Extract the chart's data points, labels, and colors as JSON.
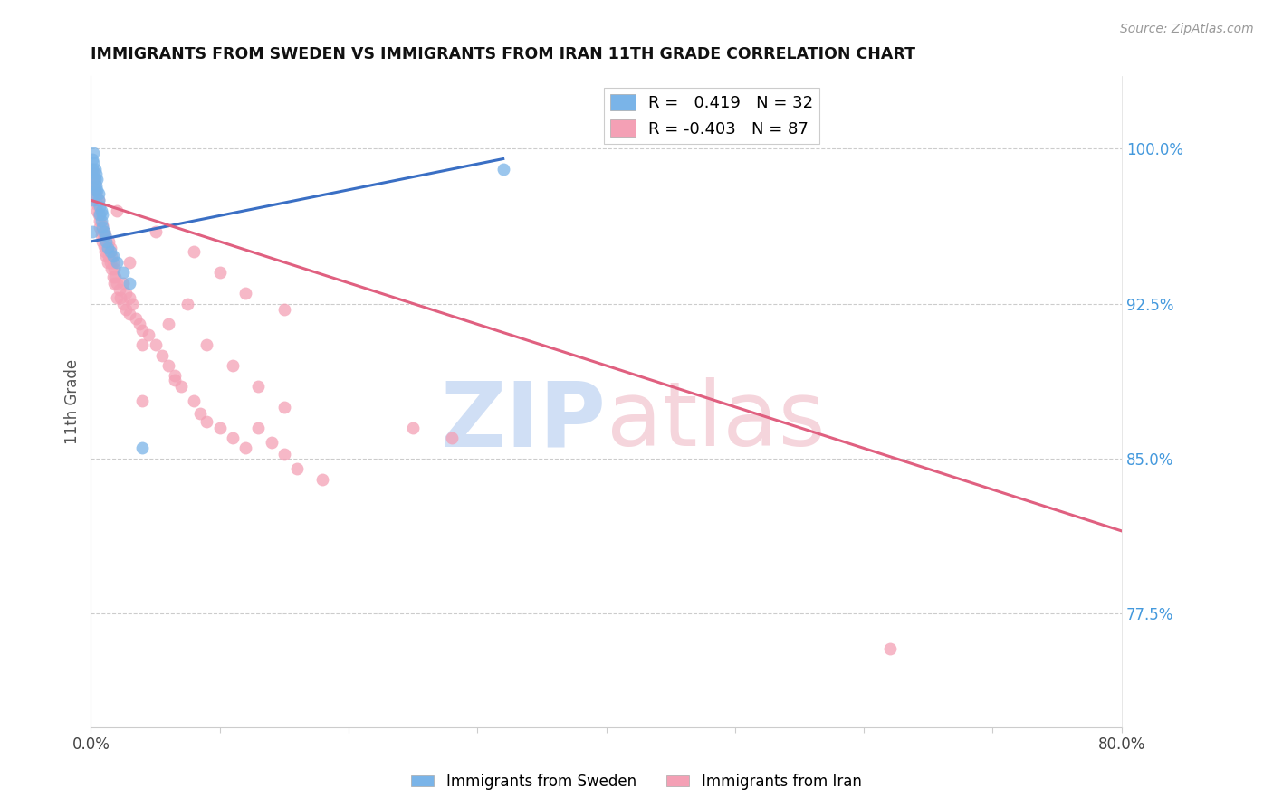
{
  "title": "IMMIGRANTS FROM SWEDEN VS IMMIGRANTS FROM IRAN 11TH GRADE CORRELATION CHART",
  "source": "Source: ZipAtlas.com",
  "ylabel": "11th Grade",
  "right_yticks": [
    0.775,
    0.85,
    0.925,
    1.0
  ],
  "right_ytick_labels": [
    "77.5%",
    "85.0%",
    "92.5%",
    "100.0%"
  ],
  "sweden_color": "#7ab4e8",
  "iran_color": "#f4a0b5",
  "sweden_line_color": "#3a6fc4",
  "iran_line_color": "#e06080",
  "watermark_zip_color": "#d0dff5",
  "watermark_atlas_color": "#f5d5dc",
  "xlim": [
    0.0,
    0.8
  ],
  "ylim": [
    0.72,
    1.035
  ],
  "xticks": [
    0.0,
    0.1,
    0.2,
    0.3,
    0.4,
    0.5,
    0.6,
    0.7,
    0.8
  ],
  "xtick_labels_show": {
    "0.0": "0.0%",
    "0.8": "80.0%"
  },
  "grid_color": "#cccccc",
  "right_axis_color": "#4499dd",
  "dot_size": 100,
  "sweden_line_x": [
    0.0,
    0.32
  ],
  "sweden_line_y": [
    0.955,
    0.995
  ],
  "iran_line_x": [
    0.0,
    0.8
  ],
  "iran_line_y": [
    0.975,
    0.815
  ],
  "sweden_points": [
    [
      0.001,
      0.995
    ],
    [
      0.001,
      0.99
    ],
    [
      0.002,
      0.998
    ],
    [
      0.002,
      0.993
    ],
    [
      0.003,
      0.99
    ],
    [
      0.003,
      0.985
    ],
    [
      0.003,
      0.98
    ],
    [
      0.004,
      0.988
    ],
    [
      0.004,
      0.982
    ],
    [
      0.005,
      0.985
    ],
    [
      0.005,
      0.98
    ],
    [
      0.006,
      0.978
    ],
    [
      0.006,
      0.975
    ],
    [
      0.007,
      0.972
    ],
    [
      0.007,
      0.968
    ],
    [
      0.008,
      0.97
    ],
    [
      0.008,
      0.965
    ],
    [
      0.009,
      0.968
    ],
    [
      0.009,
      0.962
    ],
    [
      0.01,
      0.96
    ],
    [
      0.011,
      0.958
    ],
    [
      0.012,
      0.955
    ],
    [
      0.013,
      0.952
    ],
    [
      0.015,
      0.95
    ],
    [
      0.017,
      0.948
    ],
    [
      0.02,
      0.945
    ],
    [
      0.025,
      0.94
    ],
    [
      0.03,
      0.935
    ],
    [
      0.04,
      0.855
    ],
    [
      0.002,
      0.975
    ],
    [
      0.32,
      0.99
    ],
    [
      0.001,
      0.96
    ]
  ],
  "iran_points": [
    [
      0.001,
      0.99
    ],
    [
      0.002,
      0.988
    ],
    [
      0.002,
      0.985
    ],
    [
      0.003,
      0.983
    ],
    [
      0.003,
      0.98
    ],
    [
      0.004,
      0.978
    ],
    [
      0.004,
      0.975
    ],
    [
      0.005,
      0.973
    ],
    [
      0.005,
      0.97
    ],
    [
      0.006,
      0.975
    ],
    [
      0.006,
      0.968
    ],
    [
      0.007,
      0.965
    ],
    [
      0.007,
      0.962
    ],
    [
      0.008,
      0.96
    ],
    [
      0.008,
      0.958
    ],
    [
      0.009,
      0.963
    ],
    [
      0.009,
      0.955
    ],
    [
      0.01,
      0.96
    ],
    [
      0.01,
      0.953
    ],
    [
      0.011,
      0.958
    ],
    [
      0.011,
      0.95
    ],
    [
      0.012,
      0.955
    ],
    [
      0.012,
      0.948
    ],
    [
      0.013,
      0.952
    ],
    [
      0.013,
      0.945
    ],
    [
      0.014,
      0.955
    ],
    [
      0.014,
      0.948
    ],
    [
      0.015,
      0.952
    ],
    [
      0.015,
      0.945
    ],
    [
      0.016,
      0.948
    ],
    [
      0.016,
      0.942
    ],
    [
      0.017,
      0.945
    ],
    [
      0.017,
      0.938
    ],
    [
      0.018,
      0.942
    ],
    [
      0.018,
      0.935
    ],
    [
      0.019,
      0.938
    ],
    [
      0.02,
      0.935
    ],
    [
      0.02,
      0.928
    ],
    [
      0.022,
      0.932
    ],
    [
      0.023,
      0.928
    ],
    [
      0.025,
      0.935
    ],
    [
      0.025,
      0.925
    ],
    [
      0.027,
      0.93
    ],
    [
      0.027,
      0.922
    ],
    [
      0.03,
      0.928
    ],
    [
      0.03,
      0.92
    ],
    [
      0.032,
      0.925
    ],
    [
      0.035,
      0.918
    ],
    [
      0.038,
      0.915
    ],
    [
      0.04,
      0.912
    ],
    [
      0.04,
      0.905
    ],
    [
      0.045,
      0.91
    ],
    [
      0.05,
      0.905
    ],
    [
      0.055,
      0.9
    ],
    [
      0.06,
      0.895
    ],
    [
      0.065,
      0.89
    ],
    [
      0.07,
      0.885
    ],
    [
      0.075,
      0.925
    ],
    [
      0.08,
      0.878
    ],
    [
      0.085,
      0.872
    ],
    [
      0.09,
      0.868
    ],
    [
      0.1,
      0.865
    ],
    [
      0.11,
      0.86
    ],
    [
      0.12,
      0.855
    ],
    [
      0.13,
      0.865
    ],
    [
      0.14,
      0.858
    ],
    [
      0.15,
      0.852
    ],
    [
      0.16,
      0.845
    ],
    [
      0.18,
      0.84
    ],
    [
      0.02,
      0.97
    ],
    [
      0.05,
      0.96
    ],
    [
      0.08,
      0.95
    ],
    [
      0.1,
      0.94
    ],
    [
      0.12,
      0.93
    ],
    [
      0.15,
      0.922
    ],
    [
      0.06,
      0.915
    ],
    [
      0.09,
      0.905
    ],
    [
      0.11,
      0.895
    ],
    [
      0.13,
      0.885
    ],
    [
      0.03,
      0.945
    ],
    [
      0.15,
      0.875
    ],
    [
      0.065,
      0.888
    ],
    [
      0.04,
      0.878
    ],
    [
      0.62,
      0.758
    ],
    [
      0.25,
      0.865
    ],
    [
      0.28,
      0.86
    ]
  ]
}
